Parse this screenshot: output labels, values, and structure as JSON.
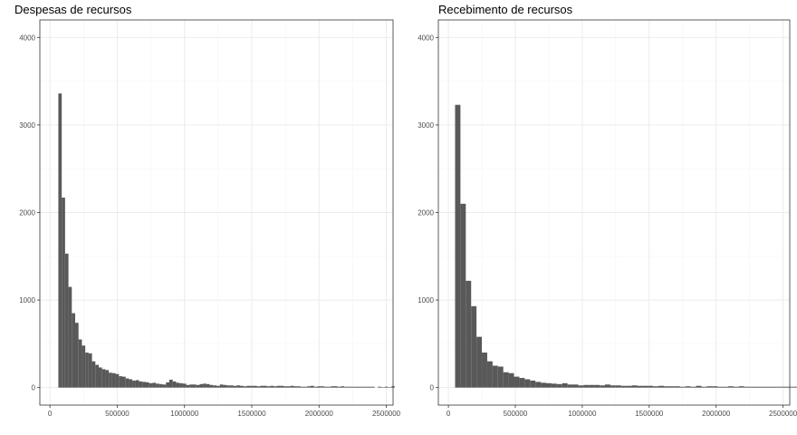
{
  "colors": {
    "bar": "#595959",
    "panel_border": "#333333",
    "grid_major": "#ebebeb",
    "grid_minor": "#f4f4f4",
    "background": "#ffffff"
  },
  "chart_data": [
    {
      "type": "bar",
      "title": "Despesas de recursos",
      "xlabel": "",
      "ylabel": "",
      "xlim": [
        -75000,
        2550000
      ],
      "ylim": [
        -200,
        4200
      ],
      "x_ticks": [
        0,
        500000,
        1000000,
        1500000,
        2000000,
        2500000
      ],
      "y_ticks": [
        0,
        1000,
        2000,
        3000,
        4000
      ],
      "grid": true,
      "bin_width": 25000,
      "bin_start": 62500,
      "counts": [
        3360,
        2170,
        1530,
        1150,
        850,
        740,
        550,
        480,
        400,
        390,
        300,
        260,
        230,
        210,
        200,
        170,
        165,
        155,
        130,
        125,
        105,
        95,
        80,
        85,
        70,
        65,
        60,
        50,
        55,
        45,
        40,
        35,
        60,
        90,
        70,
        55,
        50,
        45,
        30,
        35,
        35,
        30,
        40,
        45,
        40,
        30,
        25,
        20,
        35,
        30,
        25,
        25,
        20,
        25,
        20,
        15,
        20,
        20,
        20,
        15,
        20,
        20,
        15,
        20,
        15,
        20,
        20,
        15,
        15,
        20,
        15,
        15,
        10,
        10,
        15,
        20,
        10,
        15,
        15,
        10,
        10,
        15,
        15,
        10,
        15,
        10,
        10,
        10,
        10,
        10,
        10,
        10,
        10,
        10,
        0,
        10,
        5,
        10,
        5,
        15
      ]
    },
    {
      "type": "bar",
      "title": "Recebimento de recursos",
      "xlabel": "",
      "ylabel": "",
      "xlim": [
        -75000,
        2550000
      ],
      "ylim": [
        -200,
        4200
      ],
      "x_ticks": [
        0,
        500000,
        1000000,
        1500000,
        2000000,
        2500000
      ],
      "y_ticks": [
        0,
        1000,
        2000,
        3000,
        4000
      ],
      "grid": true,
      "bin_width": 40000,
      "bin_start": 50000,
      "counts": [
        3230,
        2100,
        1220,
        930,
        580,
        400,
        300,
        250,
        240,
        175,
        165,
        125,
        110,
        95,
        80,
        65,
        55,
        50,
        45,
        40,
        50,
        35,
        35,
        25,
        30,
        30,
        30,
        25,
        35,
        25,
        25,
        20,
        20,
        25,
        20,
        20,
        20,
        15,
        20,
        15,
        15,
        15,
        10,
        15,
        10,
        20,
        10,
        15,
        15,
        10,
        10,
        15,
        10,
        15,
        10,
        10,
        10,
        10,
        10,
        10,
        10,
        10,
        10,
        10,
        10,
        10,
        10,
        10,
        10,
        10
      ]
    }
  ]
}
